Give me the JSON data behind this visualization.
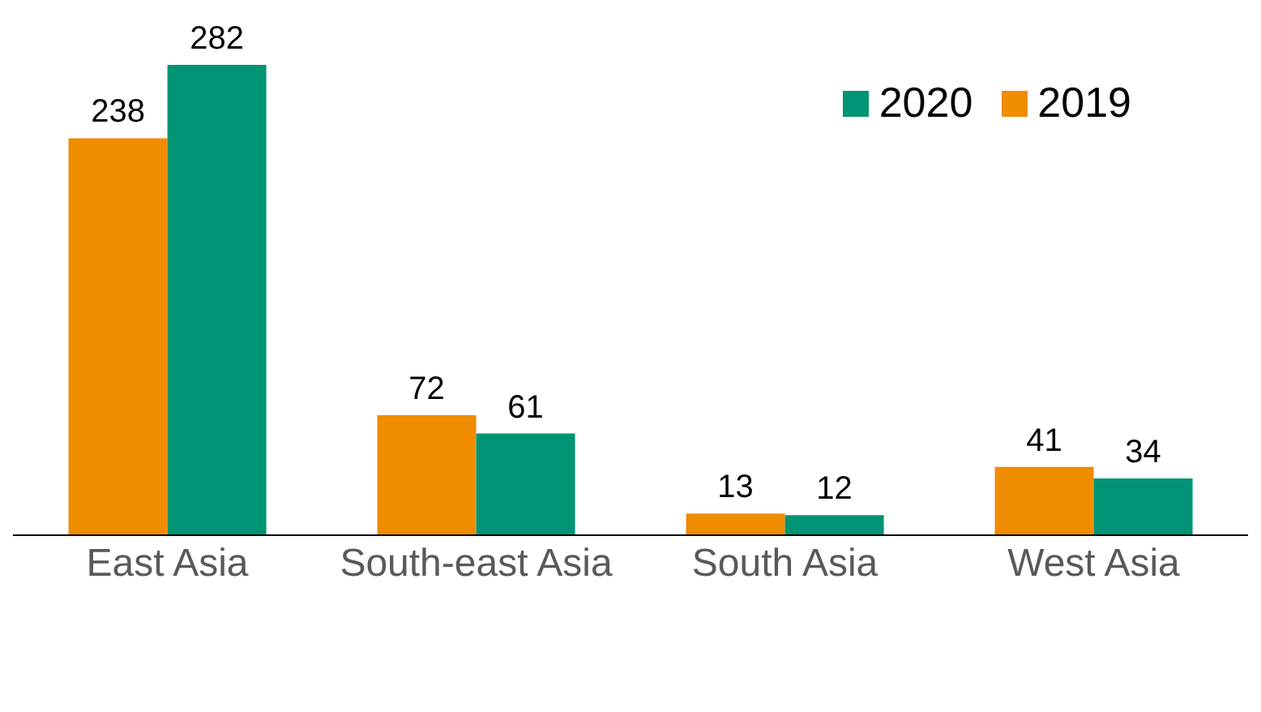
{
  "chart_data": {
    "type": "bar",
    "categories": [
      "East Asia",
      "South-east Asia",
      "South Asia",
      "West Asia"
    ],
    "series": [
      {
        "name": "2019",
        "color": "#ef8c00",
        "values": [
          238,
          72,
          13,
          41
        ]
      },
      {
        "name": "2020",
        "color": "#009474",
        "values": [
          282,
          61,
          12,
          34
        ]
      }
    ],
    "data_labels": true,
    "legend": "top right",
    "grid": false
  }
}
